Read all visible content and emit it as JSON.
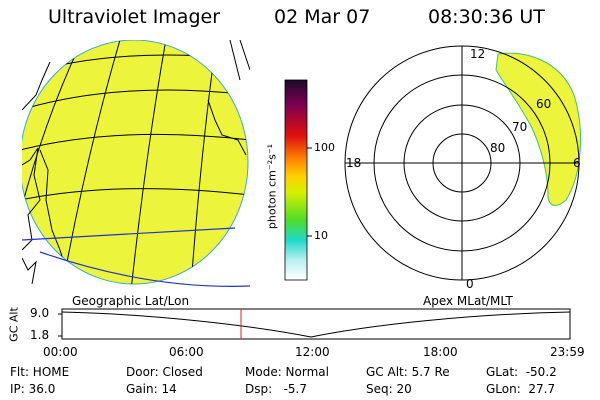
{
  "header": {
    "title": "Ultraviolet Imager",
    "date": "02 Mar 07",
    "time": "08:30:36 UT"
  },
  "colorbar": {
    "unit_label": "photon cm⁻²s⁻¹",
    "tick_100": "100",
    "tick_10": "10"
  },
  "polar": {
    "mlt_top": "12",
    "mlt_left": "18",
    "mlt_right": "6",
    "mlt_bottom": "0",
    "lat_60": "60",
    "lat_70": "70",
    "lat_80": "80"
  },
  "altitude_plot": {
    "left_caption": "Geographic Lat/Lon",
    "right_caption": "Apex MLat/MLT",
    "ylabel": "GC Alt",
    "y_top": "9.0",
    "y_bottom": "1.8",
    "x_ticks": [
      "00:00",
      "06:00",
      "12:00",
      "18:00",
      "23:59"
    ]
  },
  "status": {
    "flt": "Flt: HOME",
    "ip": "IP: 36.0",
    "door": "Door: Closed",
    "gain": "Gain: 14",
    "mode": "Mode: Normal",
    "dsp": "Dsp:   -5.7",
    "gc_alt": "GC Alt: 5.7 Re",
    "seq": "Seq: 20",
    "glat": "GLat:  -50.2",
    "glon": "GLon:  27.7"
  },
  "colors": {
    "aurora_fill": "#ecf43c",
    "colorbar_gradient": [
      "#1a0a2a",
      "#a0004c",
      "#e01010",
      "#ff8800",
      "#ffd000",
      "#ccf000",
      "#60e020",
      "#20e0c0",
      "#a0f0f0",
      "#ffffff"
    ]
  }
}
